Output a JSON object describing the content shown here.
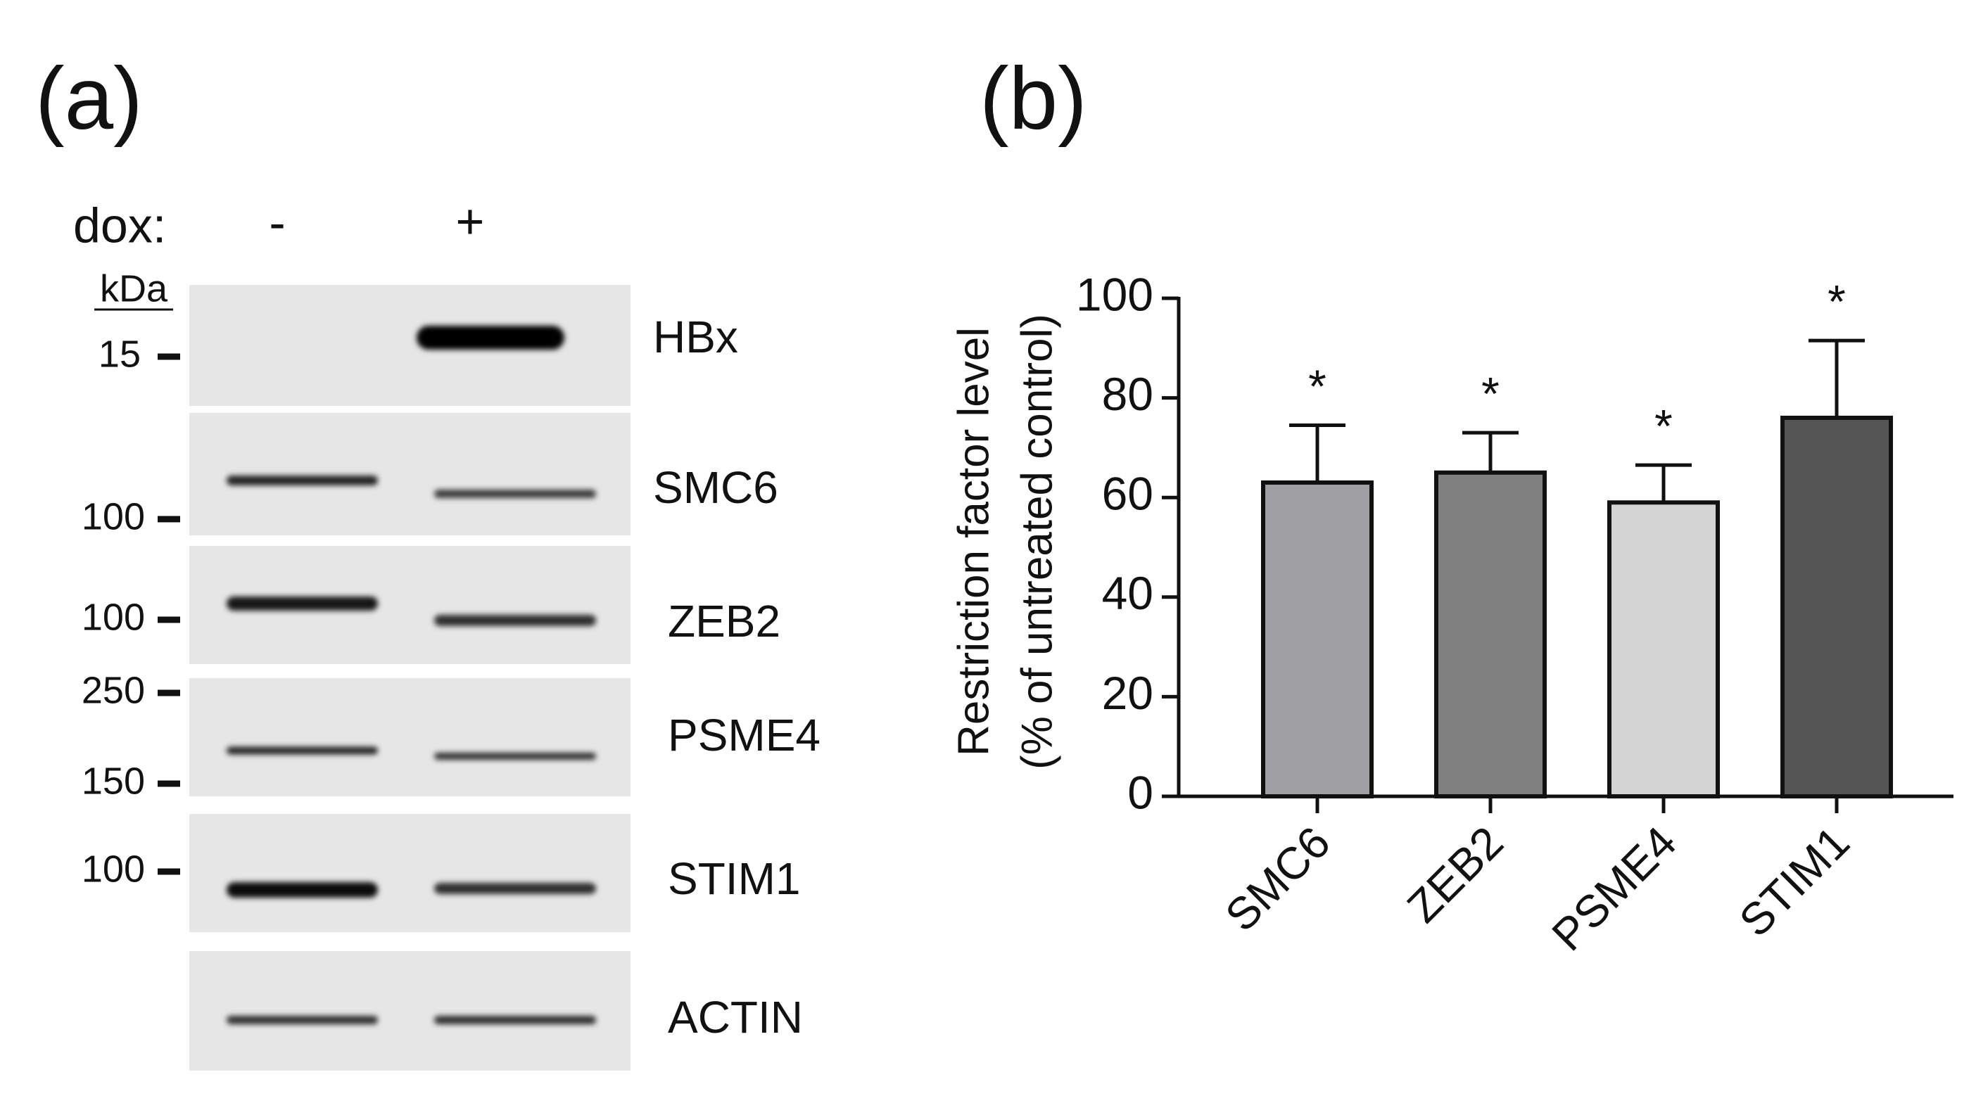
{
  "panel_a": {
    "label": "(a)",
    "dox_label": "dox:",
    "lanes": [
      "-",
      "+"
    ],
    "kda_label": "kDa",
    "markers": [
      "15",
      "100",
      "100",
      "250",
      "150",
      "100"
    ],
    "proteins": [
      "HBx",
      "SMC6",
      "ZEB2",
      "PSME4",
      "STIM1",
      "ACTIN"
    ]
  },
  "chart_data": {
    "type": "bar",
    "panel_label": "(b)",
    "ylabel": [
      "Restriction factor level",
      "(% of untreated control)"
    ],
    "categories": [
      "SMC6",
      "ZEB2",
      "PSME4",
      "STIM1"
    ],
    "values": [
      63,
      65,
      59,
      76
    ],
    "errors": [
      11.5,
      8,
      7.5,
      15.5
    ],
    "colors": [
      "#a0a0a4",
      "#808080",
      "#d4d4d4",
      "#555555"
    ],
    "annotations": [
      "*",
      "*",
      "*",
      "*"
    ],
    "ylim": [
      0,
      100
    ],
    "yticks": [
      0,
      20,
      40,
      60,
      80,
      100
    ]
  }
}
